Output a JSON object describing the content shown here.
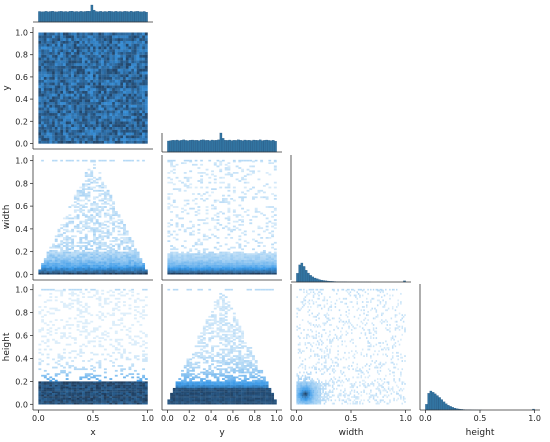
{
  "chart_data": {
    "type": "pairplot",
    "variables": [
      "x",
      "y",
      "width",
      "height"
    ],
    "layout": "corner",
    "diag_kind": "hist",
    "offdiag_kind": "hist2d",
    "axes": {
      "x": {
        "lim": [
          0,
          1
        ],
        "ticks": [
          0.0,
          0.5,
          1.0
        ],
        "tick_labels": [
          "0.0",
          "0.5",
          "1.0"
        ]
      },
      "y": {
        "lim": [
          0,
          1
        ],
        "ticks": [
          0.0,
          0.2,
          0.4,
          0.6,
          0.8,
          1.0
        ],
        "tick_labels": [
          "0.0",
          "0.2",
          "0.4",
          "0.6",
          "0.8",
          "1.0"
        ]
      },
      "width": {
        "lim": [
          0,
          1
        ],
        "ticks": [
          0.0,
          0.5,
          1.0
        ],
        "tick_labels": [
          "0.0",
          "0.5",
          "1.0"
        ],
        "ticks_as_row": [
          0.0,
          0.2,
          0.4,
          0.6,
          0.8,
          1.0
        ],
        "tick_labels_as_row": [
          "0.0",
          "0.2",
          "0.4",
          "0.6",
          "0.8",
          "1.0"
        ]
      },
      "height": {
        "lim": [
          0,
          1
        ],
        "ticks": [
          0.0,
          0.5,
          1.0
        ],
        "tick_labels": [
          "0.0",
          "0.5",
          "1.0"
        ],
        "ticks_as_row": [
          0.0,
          0.2,
          0.4,
          0.6,
          0.8,
          1.0
        ],
        "tick_labels_as_row": [
          "0.0",
          "0.2",
          "0.4",
          "0.6",
          "0.8",
          "1.0"
        ]
      }
    },
    "diagonal_histograms": {
      "x": {
        "bin_edges_range": [
          0,
          1
        ],
        "bins": 50,
        "shape": "approximately uniform",
        "peak_at": 0.5,
        "relative_counts": [
          0.62,
          0.6,
          0.61,
          0.63,
          0.6,
          0.62,
          0.64,
          0.61,
          0.6,
          0.62,
          0.63,
          0.61,
          0.62,
          0.6,
          0.63,
          0.64,
          0.61,
          0.62,
          0.6,
          0.63,
          0.61,
          0.62,
          0.64,
          0.63,
          1.0,
          0.7,
          0.62,
          0.61,
          0.63,
          0.6,
          0.62,
          0.61,
          0.64,
          0.62,
          0.6,
          0.63,
          0.61,
          0.62,
          0.6,
          0.63,
          0.62,
          0.61,
          0.64,
          0.6,
          0.62,
          0.63,
          0.61,
          0.6,
          0.62,
          0.58
        ]
      },
      "y": {
        "bin_edges_range": [
          0,
          1
        ],
        "bins": 50,
        "shape": "approximately uniform",
        "peak_at": 0.5,
        "relative_counts": [
          0.58,
          0.6,
          0.62,
          0.61,
          0.63,
          0.6,
          0.62,
          0.64,
          0.61,
          0.6,
          0.62,
          0.63,
          0.61,
          0.62,
          0.6,
          0.63,
          0.64,
          0.61,
          0.62,
          0.6,
          0.63,
          0.61,
          0.62,
          0.64,
          1.0,
          0.72,
          0.62,
          0.61,
          0.63,
          0.6,
          0.62,
          0.61,
          0.64,
          0.62,
          0.6,
          0.63,
          0.61,
          0.62,
          0.6,
          0.63,
          0.62,
          0.61,
          0.64,
          0.6,
          0.62,
          0.63,
          0.61,
          0.6,
          0.62,
          0.57
        ]
      },
      "width": {
        "bin_edges_range": [
          0,
          1
        ],
        "bins": 50,
        "shape": "right-skewed, spike at 1.0",
        "relative_counts": [
          0.46,
          0.9,
          1.0,
          0.82,
          0.62,
          0.47,
          0.35,
          0.27,
          0.21,
          0.17,
          0.13,
          0.1,
          0.08,
          0.065,
          0.05,
          0.04,
          0.032,
          0.026,
          0.02,
          0.016,
          0.013,
          0.01,
          0.008,
          0.006,
          0.005,
          0.004,
          0.003,
          0.002,
          0.002,
          0.0015,
          0.001,
          0.001,
          0.001,
          0.001,
          0.0,
          0.0,
          0.0,
          0.0,
          0.0,
          0.0,
          0.0,
          0.0,
          0.0,
          0.0,
          0.0,
          0.0,
          0.0,
          0.0,
          0.0,
          0.06
        ]
      },
      "height": {
        "bin_edges_range": [
          0,
          1
        ],
        "bins": 50,
        "shape": "right-skewed, spike at 1.0",
        "relative_counts": [
          0.3,
          0.88,
          1.0,
          0.93,
          0.85,
          0.76,
          0.66,
          0.55,
          0.43,
          0.33,
          0.25,
          0.19,
          0.14,
          0.1,
          0.07,
          0.05,
          0.035,
          0.025,
          0.018,
          0.012,
          0.008,
          0.005,
          0.003,
          0.002,
          0.001,
          0.001,
          0.0,
          0.0,
          0.0,
          0.0,
          0.0,
          0.0,
          0.0,
          0.0,
          0.0,
          0.0,
          0.0,
          0.0,
          0.0,
          0.0,
          0.0,
          0.0,
          0.0,
          0.0,
          0.0,
          0.0,
          0.0,
          0.0,
          0.0,
          0.05
        ]
      }
    },
    "joint_histograms": [
      {
        "x_var": "x",
        "y_var": "y",
        "pattern": "uniform density filling the unit square"
      },
      {
        "x_var": "x",
        "y_var": "width",
        "pattern": "triangle: width bounded by 2*min(x, 1-x), densest at low width, spike at width 1.0 near x=0.5"
      },
      {
        "x_var": "y",
        "y_var": "width",
        "pattern": "width concentrated below 0.15, sparse up to 1.0"
      },
      {
        "x_var": "x",
        "y_var": "height",
        "pattern": "height concentrated below 0.2, sparse up to 1.0"
      },
      {
        "x_var": "y",
        "y_var": "height",
        "pattern": "triangle: height bounded by 2*min(y, 1-y), densest at low height"
      },
      {
        "x_var": "width",
        "y_var": "height",
        "pattern": "scatter-like, dense cluster near (0.08, 0.08), positive spread, points along height 1.0 and width 1.0"
      }
    ],
    "colors": {
      "hist_fill": "#3274a1",
      "hist_edge": "#1f4e79",
      "heat_low": "#ddeefa",
      "heat_mid": "#3b9ae8",
      "heat_high": "#1c2e46",
      "axis": "#333333"
    },
    "grid": false,
    "legend": "none"
  }
}
